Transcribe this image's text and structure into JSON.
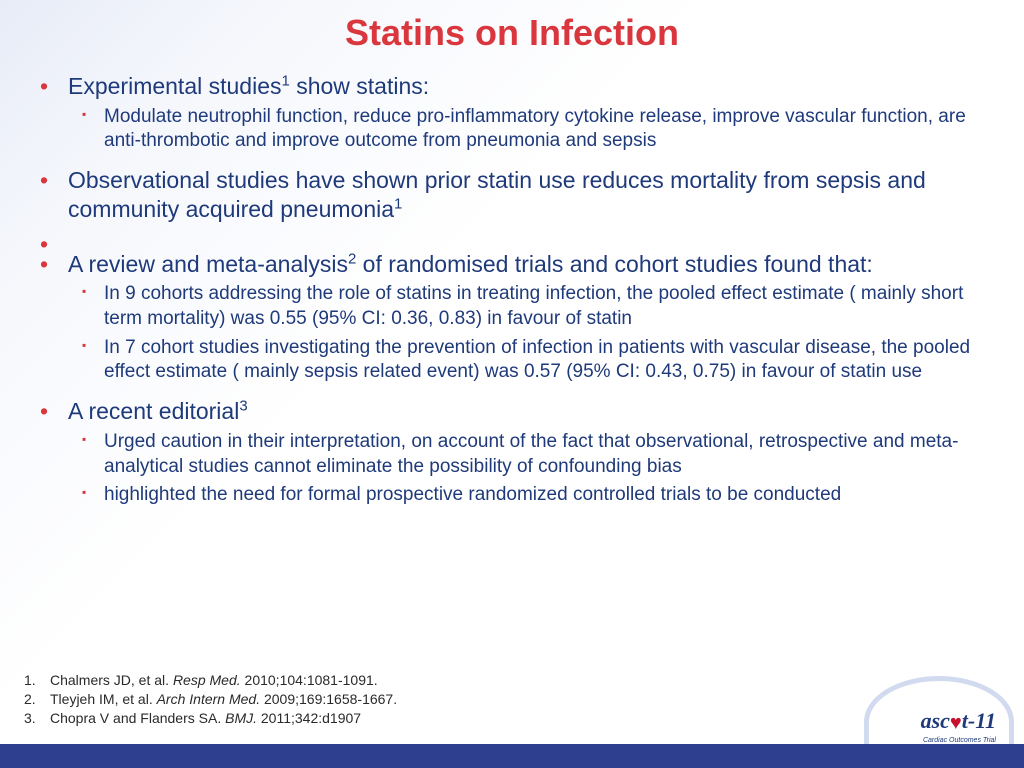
{
  "colors": {
    "title": "#d9363e",
    "body_text": "#1f3a7a",
    "bullet_main": "#d9363e",
    "bullet_sub": "#d9363e",
    "ref_text": "#2a2a2a",
    "footer_bar": "#2f3f8f",
    "logo_text": "#1f3a7a",
    "logo_heart": "#c8102e",
    "logo_arc": "#c9d4ed"
  },
  "title": "Statins on Infection",
  "bullets": [
    {
      "text_pre": "Experimental studies",
      "sup": "1",
      "text_post": " show statins:",
      "sub": [
        "Modulate neutrophil function, reduce pro-inflammatory cytokine release, improve vascular function, are anti-thrombotic and  improve outcome from pneumonia and sepsis"
      ]
    },
    {
      "text_pre": "Observational studies have shown prior statin use reduces mortality from sepsis and community acquired pneumonia",
      "sup": "1",
      "text_post": "",
      "sub": []
    },
    {
      "empty": true
    },
    {
      "text_pre": "A review and meta-analysis",
      "sup": "2",
      "text_post": " of randomised trials and cohort studies found that:",
      "sub": [
        "In 9 cohorts addressing the role of statins in treating infection, the pooled effect estimate ( mainly short term mortality) was 0.55 (95% CI: 0.36, 0.83) in favour of statin",
        "In 7 cohort studies investigating the prevention of infection in patients with vascular disease, the pooled effect estimate  ( mainly sepsis related event) was 0.57 (95% CI: 0.43, 0.75) in favour of statin use"
      ]
    },
    {
      "text_pre": "A recent editorial",
      "sup": "3",
      "text_post": "",
      "sub": [
        "Urged caution in their interpretation, on account of the fact that observational, retrospective and meta-analytical studies cannot eliminate the possibility of confounding bias",
        "highlighted the need for formal prospective randomized controlled trials to be conducted"
      ]
    }
  ],
  "references": [
    {
      "authors": "Chalmers JD, et al.",
      "journal": "Resp Med.",
      "cite": " 2010;104:1081-1091."
    },
    {
      "authors": "Tleyjeh IM, et al.",
      "journal": "Arch Intern Med.",
      "cite": " 2009;169:1658-1667."
    },
    {
      "authors": "Chopra V and Flanders SA.",
      "journal": "BMJ.",
      "cite": " 2011;342:d1907"
    }
  ],
  "logo": {
    "text_pre": "asc",
    "heart": "♥",
    "text_post": "t-11",
    "tagline": "Cardiac Outcomes Trial"
  }
}
